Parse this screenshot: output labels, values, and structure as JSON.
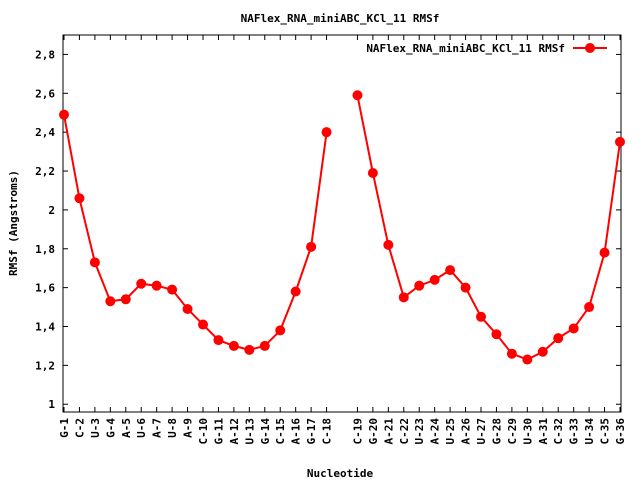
{
  "chart_data": {
    "type": "line",
    "title": "NAFlex_RNA_miniABC_KCl_11 RMSf",
    "xlabel": "Nucleotide",
    "ylabel": "RMSf (Angstroms)",
    "ylim": [
      0.96,
      2.9
    ],
    "yticks": [
      1,
      1.2,
      1.4,
      1.6,
      1.8,
      2,
      2.2,
      2.4,
      2.6,
      2.8
    ],
    "ytick_labels": [
      "1",
      "1,2",
      "1,4",
      "1,6",
      "1,8",
      "2",
      "2,2",
      "2,4",
      "2,6",
      "2,8"
    ],
    "grid": false,
    "legend_position": "top-right",
    "color": "#ff0000",
    "series": [
      {
        "name": "NAFlex_RNA_miniABC_KCl_11 RMSf",
        "segments": [
          {
            "categories": [
              "G-1",
              "C-2",
              "U-3",
              "G-4",
              "A-5",
              "U-6",
              "A-7",
              "U-8",
              "A-9",
              "C-10",
              "G-11",
              "A-12",
              "U-13",
              "G-14",
              "C-15",
              "A-16",
              "G-17",
              "C-18"
            ],
            "values": [
              2.49,
              2.06,
              1.73,
              1.53,
              1.54,
              1.62,
              1.61,
              1.59,
              1.49,
              1.41,
              1.33,
              1.3,
              1.28,
              1.3,
              1.38,
              1.58,
              1.81,
              2.4
            ]
          },
          {
            "categories": [
              "C-19",
              "G-20",
              "A-21",
              "C-22",
              "U-23",
              "A-24",
              "U-25",
              "A-26",
              "U-27",
              "G-28",
              "C-29",
              "U-30",
              "A-31",
              "C-32",
              "G-33",
              "U-34",
              "C-35",
              "G-36"
            ],
            "values": [
              2.59,
              2.19,
              1.82,
              1.55,
              1.61,
              1.64,
              1.69,
              1.6,
              1.45,
              1.36,
              1.26,
              1.23,
              1.27,
              1.34,
              1.39,
              1.5,
              1.78,
              2.35
            ]
          }
        ]
      }
    ]
  }
}
